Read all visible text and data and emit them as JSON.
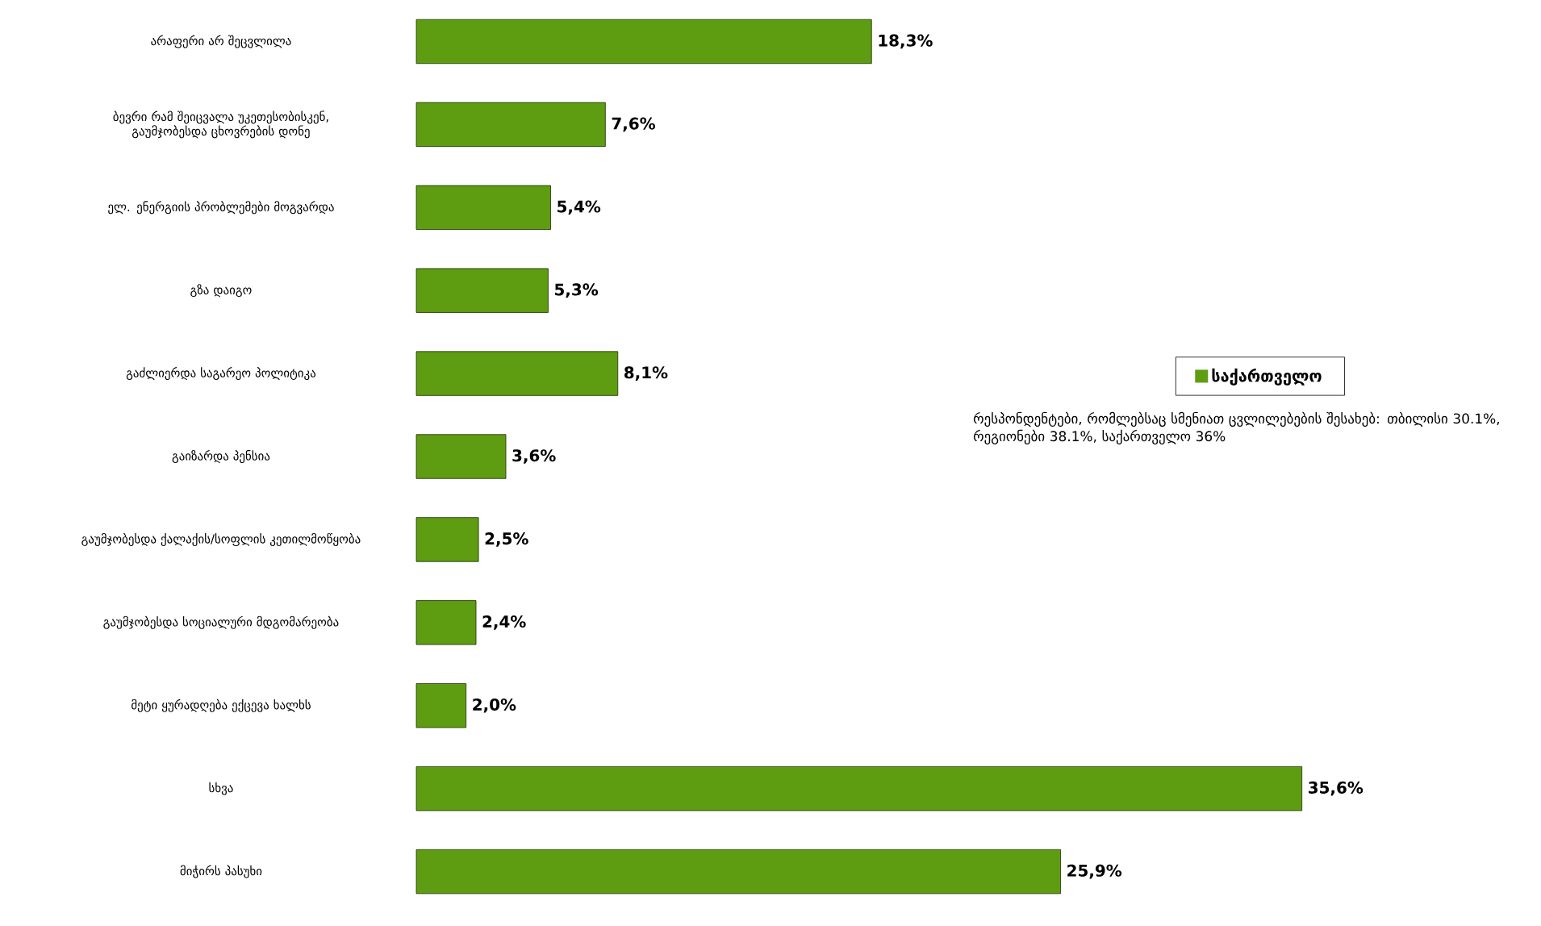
{
  "chart_data": {
    "type": "bar",
    "orientation": "horizontal",
    "legend": "right",
    "categories": [
      "არაფერი არ შეცვლილა",
      "ბევრი რამ შეიცვალა უკეთესობისკენ, გაუმჯობესდა ცხოვრების დონე",
      "ელ. ენერგიის პრობლემები მოგვარდა",
      "გზა დაიგო",
      "გაძლიერდა საგარეო პოლიტიკა",
      "გაიზარდა პენსია",
      "გაუმჯობესდა ქალაქის/სოფლის კეთილმოწყობა",
      "გაუმჯობესდა სოციალური მდგომარეობა",
      "მეტი ყურადღება ექცევა ხალხს",
      "სხვა",
      "მიჭირს პასუხი"
    ],
    "series": [
      {
        "name": "საქართველო",
        "color": "#5e9c12",
        "values": [
          18.3,
          7.6,
          5.4,
          5.3,
          8.1,
          3.6,
          2.5,
          2.4,
          2.0,
          35.6,
          25.9
        ],
        "value_labels": [
          "18,3%",
          "7,6%",
          "5,4%",
          "5,3%",
          "8,1%",
          "3,6%",
          "2,5%",
          "2,4%",
          "2,0%",
          "35,6%",
          "25,9%"
        ]
      }
    ],
    "annotations": [
      "რესპონდენტები, რომლებსაც სმენიათ ცვლილებების შესახებ: თბილისი 30.1%, რეგიონები 38.1%, საქართველო 36%"
    ]
  }
}
